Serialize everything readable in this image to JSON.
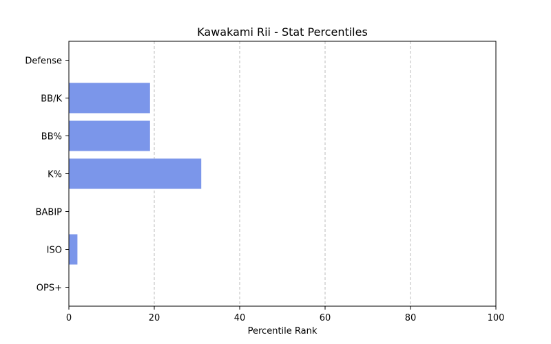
{
  "chart_data": {
    "type": "bar",
    "orientation": "horizontal",
    "title": "Kawakami Rii - Stat Percentiles",
    "xlabel": "Percentile Rank",
    "ylabel": "",
    "xlim": [
      0,
      100
    ],
    "xticks": [
      "0",
      "20",
      "40",
      "60",
      "80",
      "100"
    ],
    "grid": "x, dashed",
    "categories": [
      "OPS+",
      "ISO",
      "BABIP",
      "K%",
      "BB%",
      "BB/K",
      "Defense"
    ],
    "values": [
      0,
      2,
      0,
      31,
      19,
      19,
      0
    ],
    "bar_color": "#7b96ea"
  }
}
